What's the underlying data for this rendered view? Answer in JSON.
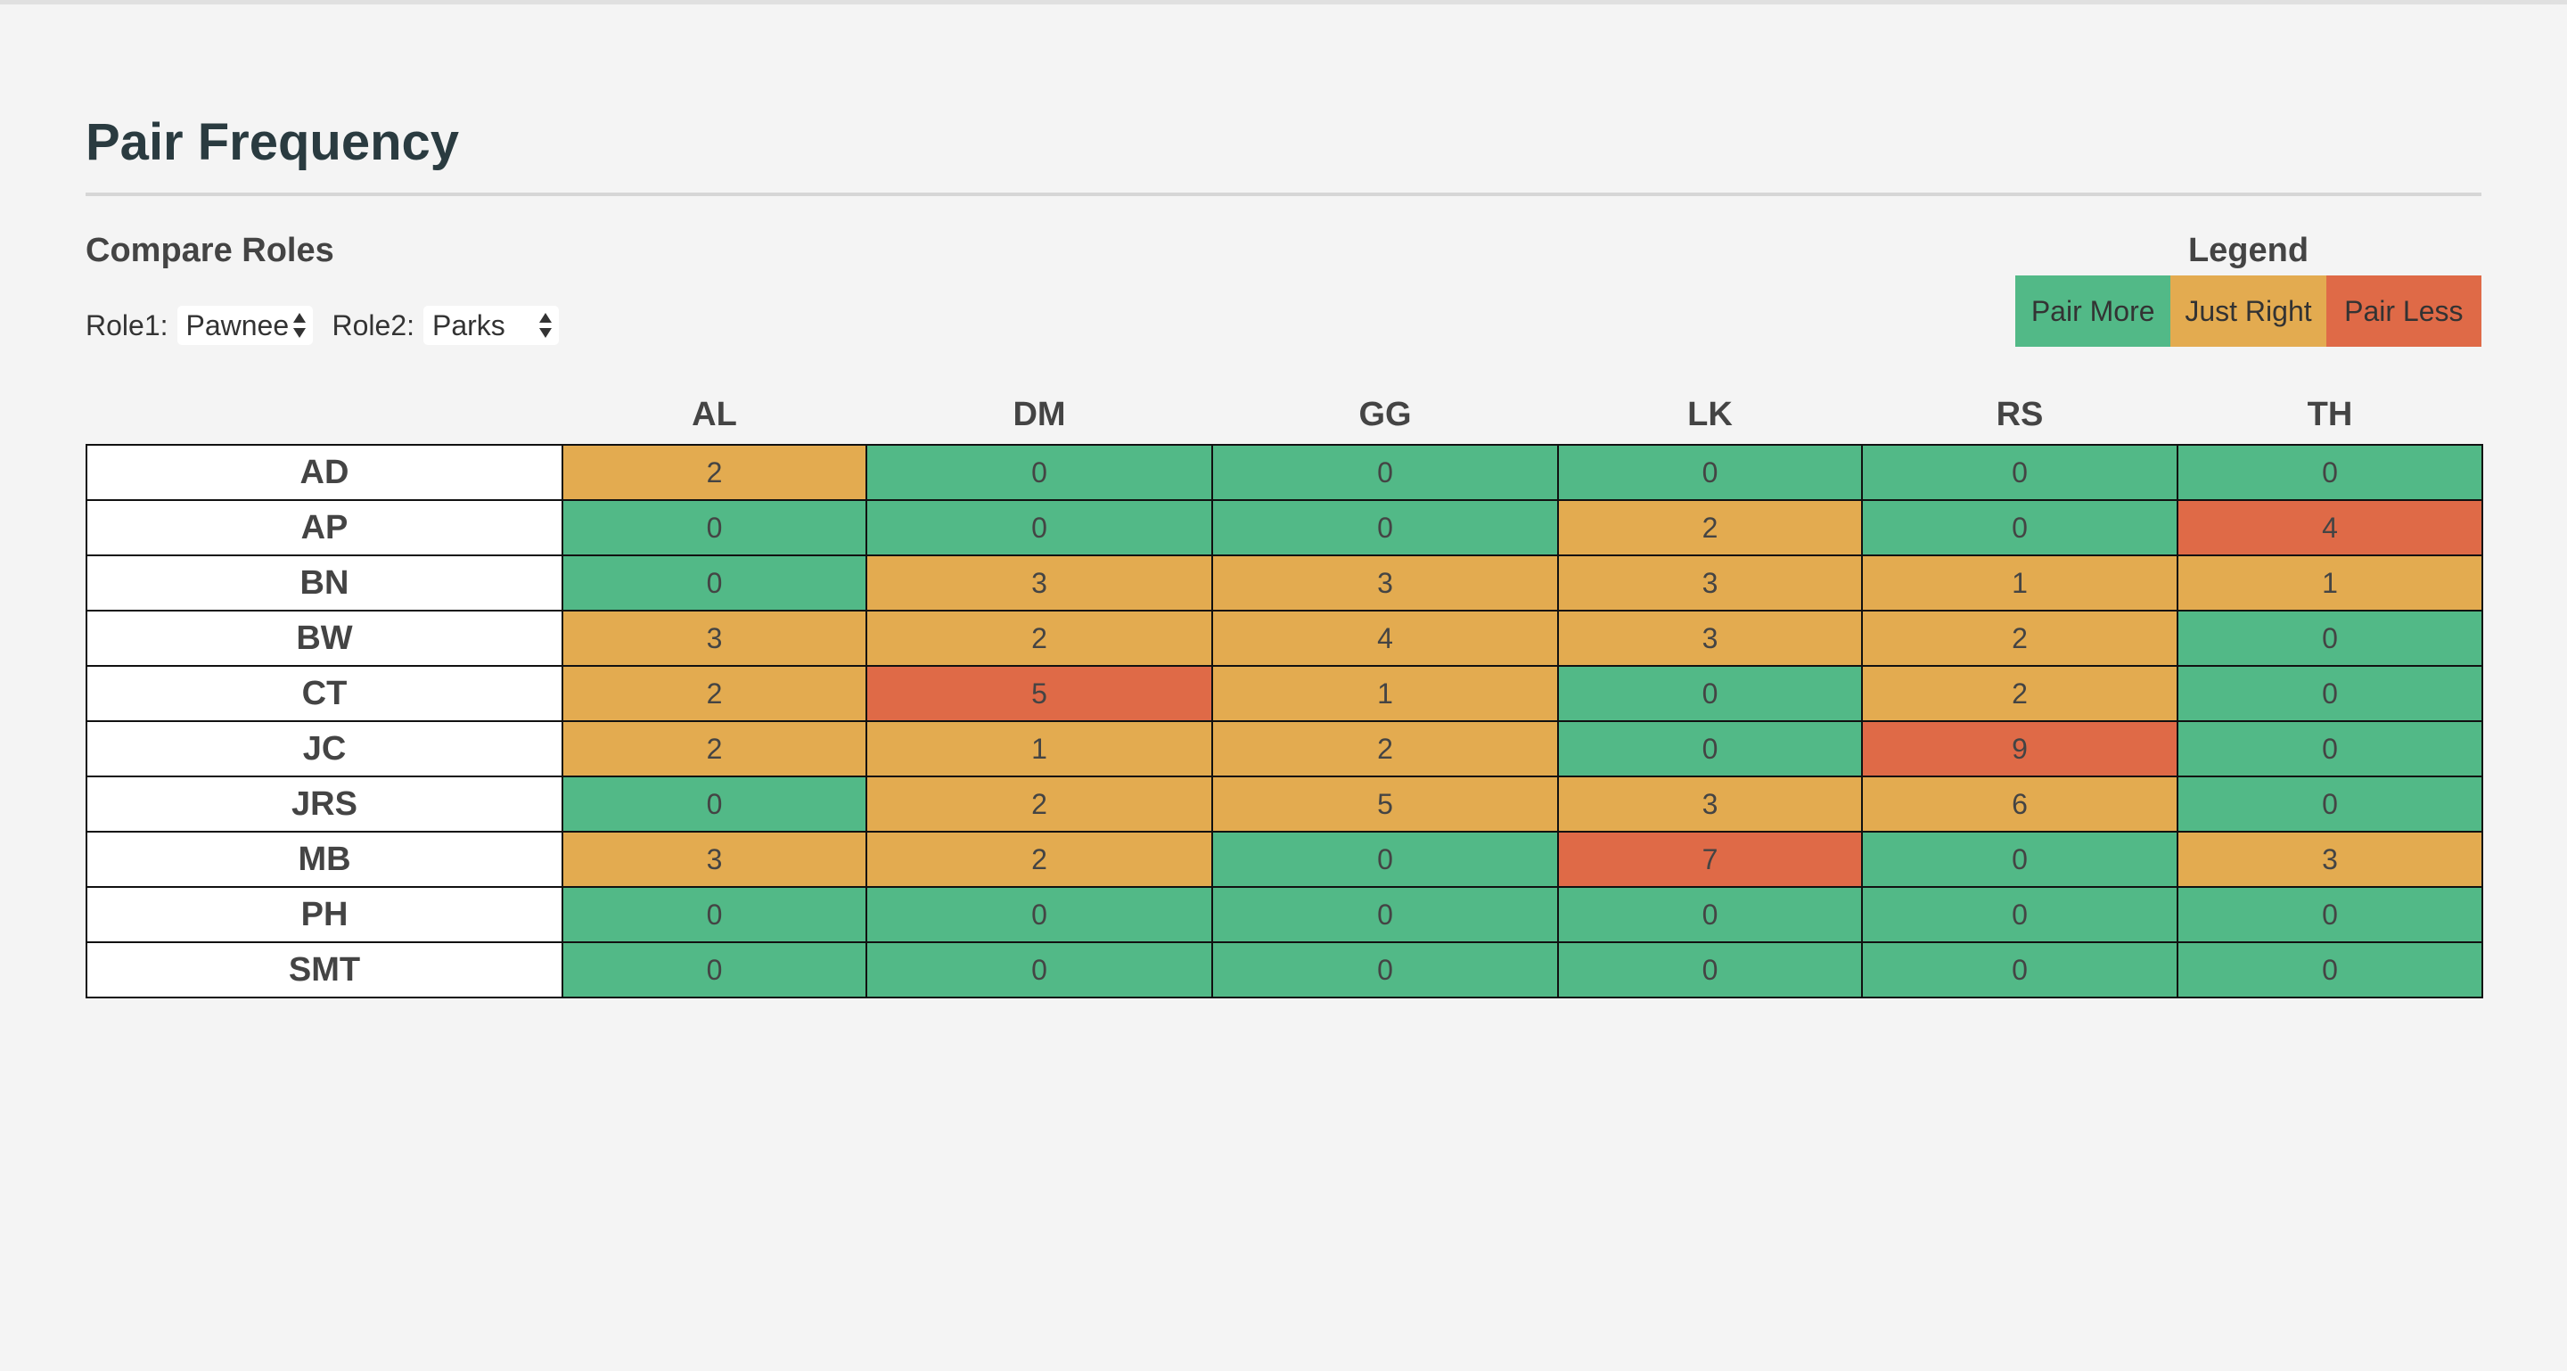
{
  "page": {
    "title": "Pair Frequency",
    "subtitle": "Compare Roles"
  },
  "roles": {
    "role1_label": "Role1:",
    "role1_value": "Pawnee",
    "role2_label": "Role2:",
    "role2_value": "Parks"
  },
  "legend": {
    "title": "Legend",
    "items": [
      {
        "label": "Pair More",
        "color": "#52b987"
      },
      {
        "label": "Just Right",
        "color": "#e3ab50"
      },
      {
        "label": "Pair Less",
        "color": "#df6a47"
      }
    ]
  },
  "table": {
    "columns": [
      "AL",
      "DM",
      "GG",
      "LK",
      "RS",
      "TH"
    ],
    "rows": [
      {
        "name": "AD",
        "values": [
          2,
          0,
          0,
          0,
          0,
          0
        ],
        "status": [
          "right",
          "more",
          "more",
          "more",
          "more",
          "more"
        ]
      },
      {
        "name": "AP",
        "values": [
          0,
          0,
          0,
          2,
          0,
          4
        ],
        "status": [
          "more",
          "more",
          "more",
          "right",
          "more",
          "less"
        ]
      },
      {
        "name": "BN",
        "values": [
          0,
          3,
          3,
          3,
          1,
          1
        ],
        "status": [
          "more",
          "right",
          "right",
          "right",
          "right",
          "right"
        ]
      },
      {
        "name": "BW",
        "values": [
          3,
          2,
          4,
          3,
          2,
          0
        ],
        "status": [
          "right",
          "right",
          "right",
          "right",
          "right",
          "more"
        ]
      },
      {
        "name": "CT",
        "values": [
          2,
          5,
          1,
          0,
          2,
          0
        ],
        "status": [
          "right",
          "less",
          "right",
          "more",
          "right",
          "more"
        ]
      },
      {
        "name": "JC",
        "values": [
          2,
          1,
          2,
          0,
          9,
          0
        ],
        "status": [
          "right",
          "right",
          "right",
          "more",
          "less",
          "more"
        ]
      },
      {
        "name": "JRS",
        "values": [
          0,
          2,
          5,
          3,
          6,
          0
        ],
        "status": [
          "more",
          "right",
          "right",
          "right",
          "right",
          "more"
        ]
      },
      {
        "name": "MB",
        "values": [
          3,
          2,
          0,
          7,
          0,
          3
        ],
        "status": [
          "right",
          "right",
          "more",
          "less",
          "more",
          "right"
        ]
      },
      {
        "name": "PH",
        "values": [
          0,
          0,
          0,
          0,
          0,
          0
        ],
        "status": [
          "more",
          "more",
          "more",
          "more",
          "more",
          "more"
        ]
      },
      {
        "name": "SMT",
        "values": [
          0,
          0,
          0,
          0,
          0,
          0
        ],
        "status": [
          "more",
          "more",
          "more",
          "more",
          "more",
          "more"
        ]
      }
    ]
  }
}
